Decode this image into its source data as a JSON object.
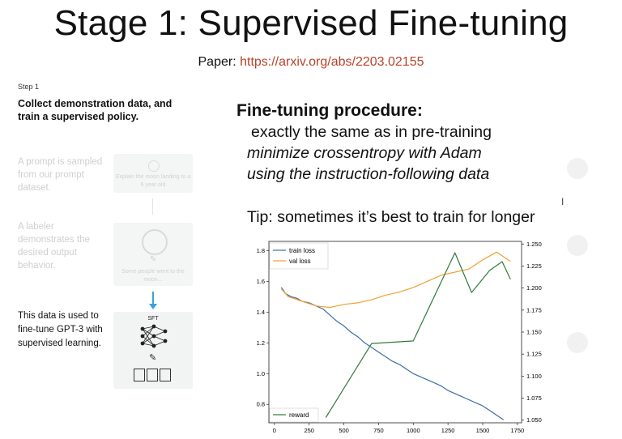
{
  "slide": {
    "title": "Stage 1: Supervised Fine-tuning",
    "paper_label": "Paper:",
    "paper_link": "https://arxiv.org/abs/2203.02155"
  },
  "step": {
    "label": "Step 1",
    "title": "Collect demonstration data, and train a supervised policy.",
    "faded_1": "A prompt is sampled from our prompt dataset.",
    "box_1_text": "Explain the moon landing to a 6 year old",
    "faded_2": "A labeler demonstrates the desired output behavior.",
    "box_2_text": "Some people went to the moon...",
    "sft_label": "SFT",
    "sft_description": "This data is used to fine-tune GPT-3 with supervised learning."
  },
  "procedure": {
    "title": "Fine-tuning procedure:",
    "line_1": "exactly the same as in pre-training",
    "line_2": "minimize crossentropy with Adam",
    "line_3": "using the instruction-following data",
    "tip": "Tip: sometimes it’s best to train for longer"
  },
  "colors": {
    "train_loss": "#3d6ea3",
    "val_loss": "#f0a030",
    "reward": "#2f7a38",
    "link": "#b5432a"
  },
  "chart_data": {
    "type": "line",
    "x_ticks": [
      0,
      250,
      500,
      750,
      1000,
      1250,
      1500,
      1750
    ],
    "xlim": [
      -40,
      1780
    ],
    "y_left": {
      "ticks": [
        "0.8",
        "1.0",
        "1.2",
        "1.4",
        "1.6",
        "1.8"
      ],
      "lim": [
        0.68,
        1.86
      ]
    },
    "y_right": {
      "ticks": [
        "1.050",
        "1.075",
        "1.100",
        "1.125",
        "1.150",
        "1.175",
        "1.200",
        "1.225",
        "1.250"
      ],
      "lim": [
        1.047,
        1.253
      ]
    },
    "legend_top": [
      "train loss",
      "val loss"
    ],
    "legend_bottom": "reward",
    "series": [
      {
        "name": "train loss",
        "axis": "left",
        "x": [
          50,
          80,
          120,
          160,
          200,
          250,
          300,
          350,
          400,
          450,
          500,
          550,
          600,
          650,
          700,
          750,
          800,
          850,
          900,
          950,
          1000,
          1050,
          1100,
          1150,
          1200,
          1250,
          1300,
          1350,
          1400,
          1450,
          1500,
          1550,
          1600,
          1650
        ],
        "y": [
          1.56,
          1.52,
          1.5,
          1.49,
          1.47,
          1.46,
          1.44,
          1.42,
          1.38,
          1.34,
          1.31,
          1.27,
          1.24,
          1.2,
          1.17,
          1.14,
          1.11,
          1.08,
          1.06,
          1.03,
          1.0,
          0.98,
          0.96,
          0.94,
          0.92,
          0.89,
          0.87,
          0.85,
          0.83,
          0.81,
          0.79,
          0.76,
          0.73,
          0.7
        ]
      },
      {
        "name": "val loss",
        "axis": "left",
        "x": [
          50,
          100,
          200,
          300,
          400,
          500,
          600,
          700,
          800,
          900,
          1000,
          1100,
          1200,
          1300,
          1400,
          1500,
          1600,
          1700
        ],
        "y": [
          1.55,
          1.5,
          1.47,
          1.44,
          1.43,
          1.45,
          1.46,
          1.48,
          1.51,
          1.53,
          1.56,
          1.6,
          1.64,
          1.66,
          1.68,
          1.74,
          1.79,
          1.73
        ]
      },
      {
        "name": "reward",
        "axis": "right",
        "x": [
          370,
          700,
          1000,
          1300,
          1420,
          1550,
          1640,
          1700
        ],
        "y": [
          1.053,
          1.137,
          1.14,
          1.24,
          1.195,
          1.22,
          1.23,
          1.21
        ]
      }
    ]
  }
}
